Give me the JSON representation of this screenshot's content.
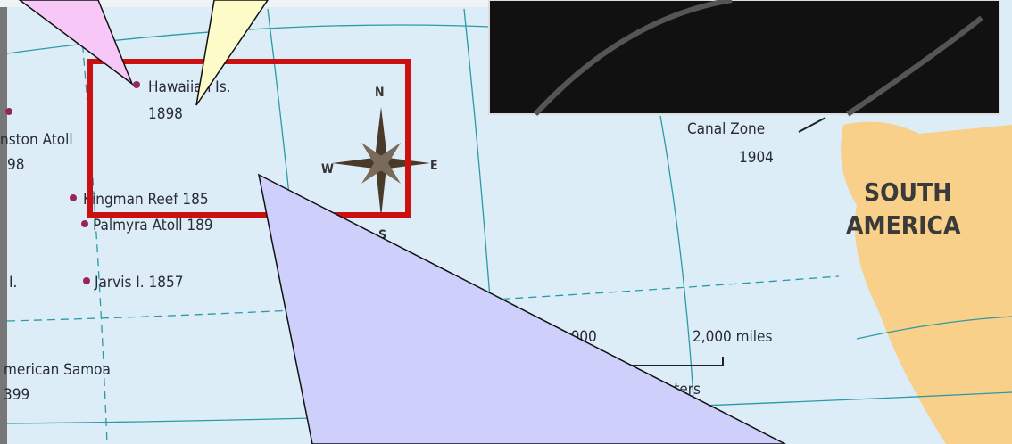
{
  "labels": {
    "hawaii": "Hawaiian Is.",
    "hawaii_year": "1898",
    "johnston": "nston Atoll",
    "johnston_year": "98",
    "kingman": "Kingman Reef 185",
    "palmyra": "Palmyra Atoll 189",
    "left_island": "I.",
    "jarvis": "Jarvis I. 1857",
    "samoa": "merican Samoa",
    "samoa_year": "399",
    "canal": "Canal Zone",
    "canal_year": "1904",
    "continent_1": "SOUTH",
    "continent_2": "AMERICA"
  },
  "compass": {
    "n": "N",
    "s": "S",
    "e": "E",
    "w": "W"
  },
  "scale": {
    "miles_1": "1,000",
    "miles_2": "2,000 miles",
    "km": "00 kilometers"
  }
}
